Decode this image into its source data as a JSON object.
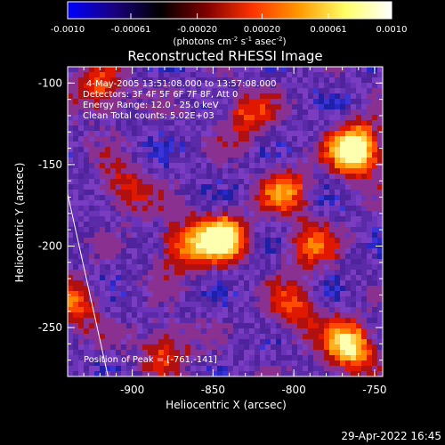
{
  "colorbar": {
    "ticks": [
      "-0.0010",
      "-0.00061",
      "-0.00020",
      "0.00020",
      "0.00061",
      "0.0010"
    ],
    "unit_pre": "(photons cm",
    "unit_exp1": "-2",
    "unit_mid": " s",
    "unit_exp2": "-1",
    "unit_mid2": " asec",
    "unit_exp3": "-2",
    "unit_post": ")",
    "colors": [
      "#0000ff",
      "#1a0080",
      "#000000",
      "#800000",
      "#ff3300",
      "#ff9900",
      "#ffff66",
      "#ffffff"
    ]
  },
  "chart_data": {
    "type": "heatmap",
    "title": "Reconstructed RHESSI Image",
    "xlabel": "Heliocentric X (arcsec)",
    "ylabel": "Heliocentric Y (arcsec)",
    "xlim": [
      -940,
      -745
    ],
    "ylim": [
      -280,
      -90
    ],
    "xticks": [
      {
        "value": -900,
        "label": "-900"
      },
      {
        "value": -850,
        "label": "-850"
      },
      {
        "value": -800,
        "label": "-800"
      },
      {
        "value": -750,
        "label": "-750"
      }
    ],
    "yticks": [
      {
        "value": -100,
        "label": "-100"
      },
      {
        "value": -150,
        "label": "-150"
      },
      {
        "value": -200,
        "label": "-200"
      },
      {
        "value": -250,
        "label": "-250"
      }
    ],
    "vmin": -0.001,
    "vmax": 0.001,
    "annotations": [
      "4-May-2005 13:51:08.000 to 13:57:08.000",
      "Detectors: 3F 4F 5F 6F 7F 8F, Att 0",
      "Energy Range: 12.0 - 25.0 keV",
      "Clean    Total counts: 5.02E+03"
    ],
    "peak_label": "Position of Peak = [-761,-141]",
    "peak": [
      -761,
      -141
    ],
    "hotspots": [
      {
        "x": -761,
        "y": -141,
        "strength": 1.0
      },
      {
        "x": -845,
        "y": -195,
        "strength": 0.85
      },
      {
        "x": -765,
        "y": -262,
        "strength": 0.8
      },
      {
        "x": -870,
        "y": -200,
        "strength": 0.55
      },
      {
        "x": -805,
        "y": -165,
        "strength": 0.5
      },
      {
        "x": -920,
        "y": -105,
        "strength": 0.55
      },
      {
        "x": -905,
        "y": -165,
        "strength": 0.45
      },
      {
        "x": -830,
        "y": -120,
        "strength": 0.45
      },
      {
        "x": -935,
        "y": -235,
        "strength": 0.5
      },
      {
        "x": -880,
        "y": -262,
        "strength": 0.5
      },
      {
        "x": -800,
        "y": -240,
        "strength": 0.45
      },
      {
        "x": -790,
        "y": -200,
        "strength": 0.45
      }
    ],
    "limb_line": [
      [
        -940,
        -168
      ],
      [
        -915,
        -280
      ]
    ]
  },
  "timestamp": "29-Apr-2022 16:45"
}
